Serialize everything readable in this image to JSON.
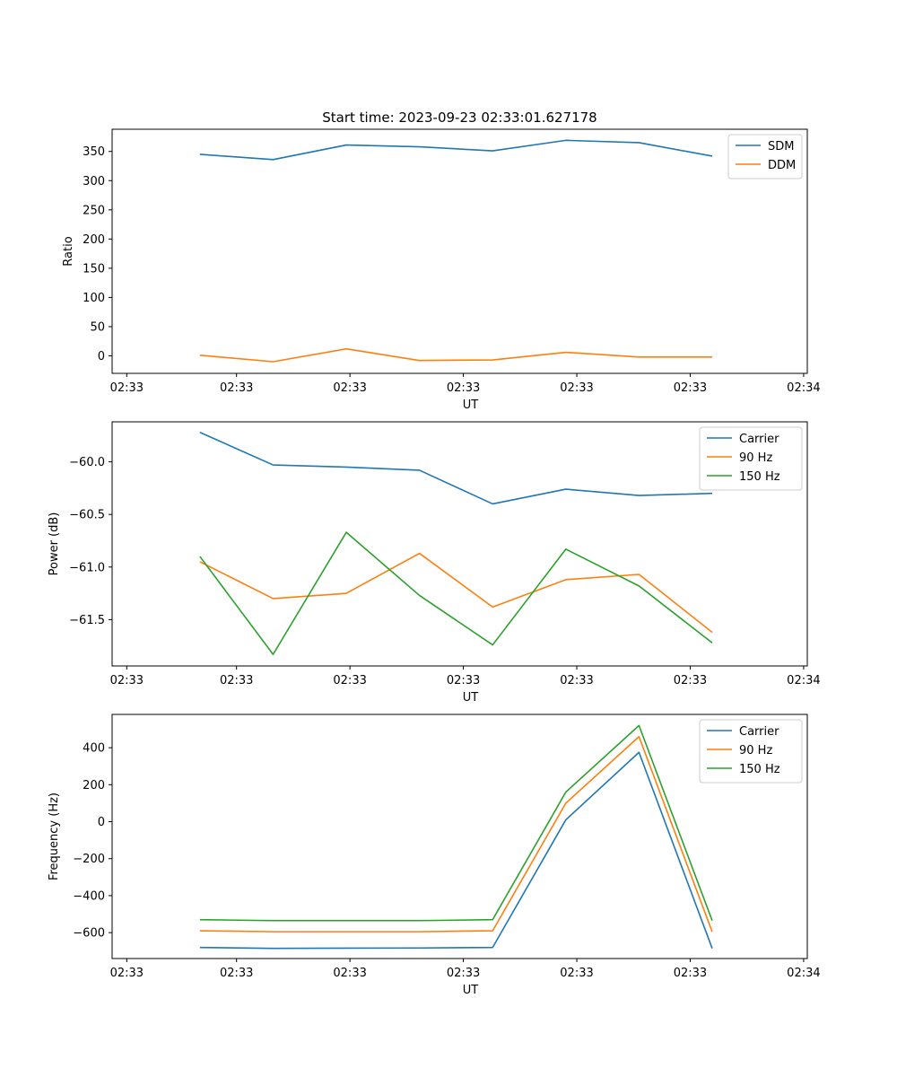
{
  "figure": {
    "title": "Start time: 2023-09-23 02:33:01.627178"
  },
  "colors": {
    "blue": "#1f77b4",
    "orange": "#ff7f0e",
    "green": "#2ca02c"
  },
  "chart_data": [
    {
      "type": "line",
      "title": "Start time: 2023-09-23 02:33:01.627178",
      "xlabel": "UT",
      "ylabel": "Ratio",
      "x": [
        1,
        2,
        3,
        4,
        5,
        6,
        7,
        8
      ],
      "xlim": [
        -0.2,
        9.3
      ],
      "x_ticks": [
        0,
        1.5,
        3.05,
        4.6,
        6.15,
        7.7,
        9.25
      ],
      "x_tick_labels": [
        "02:33",
        "02:33",
        "02:33",
        "02:33",
        "02:33",
        "02:33",
        "02:34"
      ],
      "ylim": [
        -30,
        388
      ],
      "y_ticks": [
        0,
        50,
        100,
        150,
        200,
        250,
        300,
        350
      ],
      "y_tick_labels": [
        "0",
        "50",
        "100",
        "150",
        "200",
        "250",
        "300",
        "350"
      ],
      "legend_position": "upper right",
      "series": [
        {
          "name": "SDM",
          "color": "#1f77b4",
          "values": [
            345,
            336,
            361,
            358,
            351,
            369,
            365,
            342
          ]
        },
        {
          "name": "DDM",
          "color": "#ff7f0e",
          "values": [
            1,
            -10,
            12,
            -8,
            -7,
            6,
            -2,
            -2
          ]
        }
      ]
    },
    {
      "type": "line",
      "title": "",
      "xlabel": "UT",
      "ylabel": "Power (dB)",
      "x": [
        1,
        2,
        3,
        4,
        5,
        6,
        7,
        8
      ],
      "xlim": [
        -0.2,
        9.3
      ],
      "x_ticks": [
        0,
        1.5,
        3.05,
        4.6,
        6.15,
        7.7,
        9.25
      ],
      "x_tick_labels": [
        "02:33",
        "02:33",
        "02:33",
        "02:33",
        "02:33",
        "02:33",
        "02:34"
      ],
      "ylim": [
        -61.94,
        -59.62
      ],
      "y_ticks": [
        -60.0,
        -60.5,
        -61.0,
        -61.5
      ],
      "y_tick_labels": [
        "−60.0",
        "−60.5",
        "−61.0",
        "−61.5"
      ],
      "legend_position": "upper right",
      "series": [
        {
          "name": "Carrier",
          "color": "#1f77b4",
          "values": [
            -59.72,
            -60.03,
            -60.05,
            -60.08,
            -60.4,
            -60.26,
            -60.32,
            -60.3
          ]
        },
        {
          "name": "90 Hz",
          "color": "#ff7f0e",
          "values": [
            -60.95,
            -61.3,
            -61.25,
            -60.87,
            -61.38,
            -61.12,
            -61.07,
            -61.62
          ]
        },
        {
          "name": "150 Hz",
          "color": "#2ca02c",
          "values": [
            -60.9,
            -61.83,
            -60.67,
            -61.27,
            -61.74,
            -60.83,
            -61.18,
            -61.72
          ]
        }
      ]
    },
    {
      "type": "line",
      "title": "",
      "xlabel": "UT",
      "ylabel": "Frequency (Hz)",
      "x": [
        1,
        2,
        3,
        4,
        5,
        6,
        7,
        8
      ],
      "xlim": [
        -0.2,
        9.3
      ],
      "x_ticks": [
        0,
        1.5,
        3.05,
        4.6,
        6.15,
        7.7,
        9.25
      ],
      "x_tick_labels": [
        "02:33",
        "02:33",
        "02:33",
        "02:33",
        "02:33",
        "02:33",
        "02:34"
      ],
      "ylim": [
        -740,
        580
      ],
      "y_ticks": [
        400,
        200,
        0,
        -200,
        -400,
        -600
      ],
      "y_tick_labels": [
        "400",
        "200",
        "0",
        "−200",
        "−400",
        "−600"
      ],
      "legend_position": "upper right",
      "series": [
        {
          "name": "Carrier",
          "color": "#1f77b4",
          "values": [
            -680,
            -685,
            -684,
            -683,
            -680,
            10,
            375,
            -685
          ]
        },
        {
          "name": "90 Hz",
          "color": "#ff7f0e",
          "values": [
            -590,
            -595,
            -595,
            -595,
            -590,
            100,
            460,
            -595
          ]
        },
        {
          "name": "150 Hz",
          "color": "#2ca02c",
          "values": [
            -530,
            -535,
            -535,
            -535,
            -530,
            160,
            520,
            -535
          ]
        }
      ]
    }
  ]
}
